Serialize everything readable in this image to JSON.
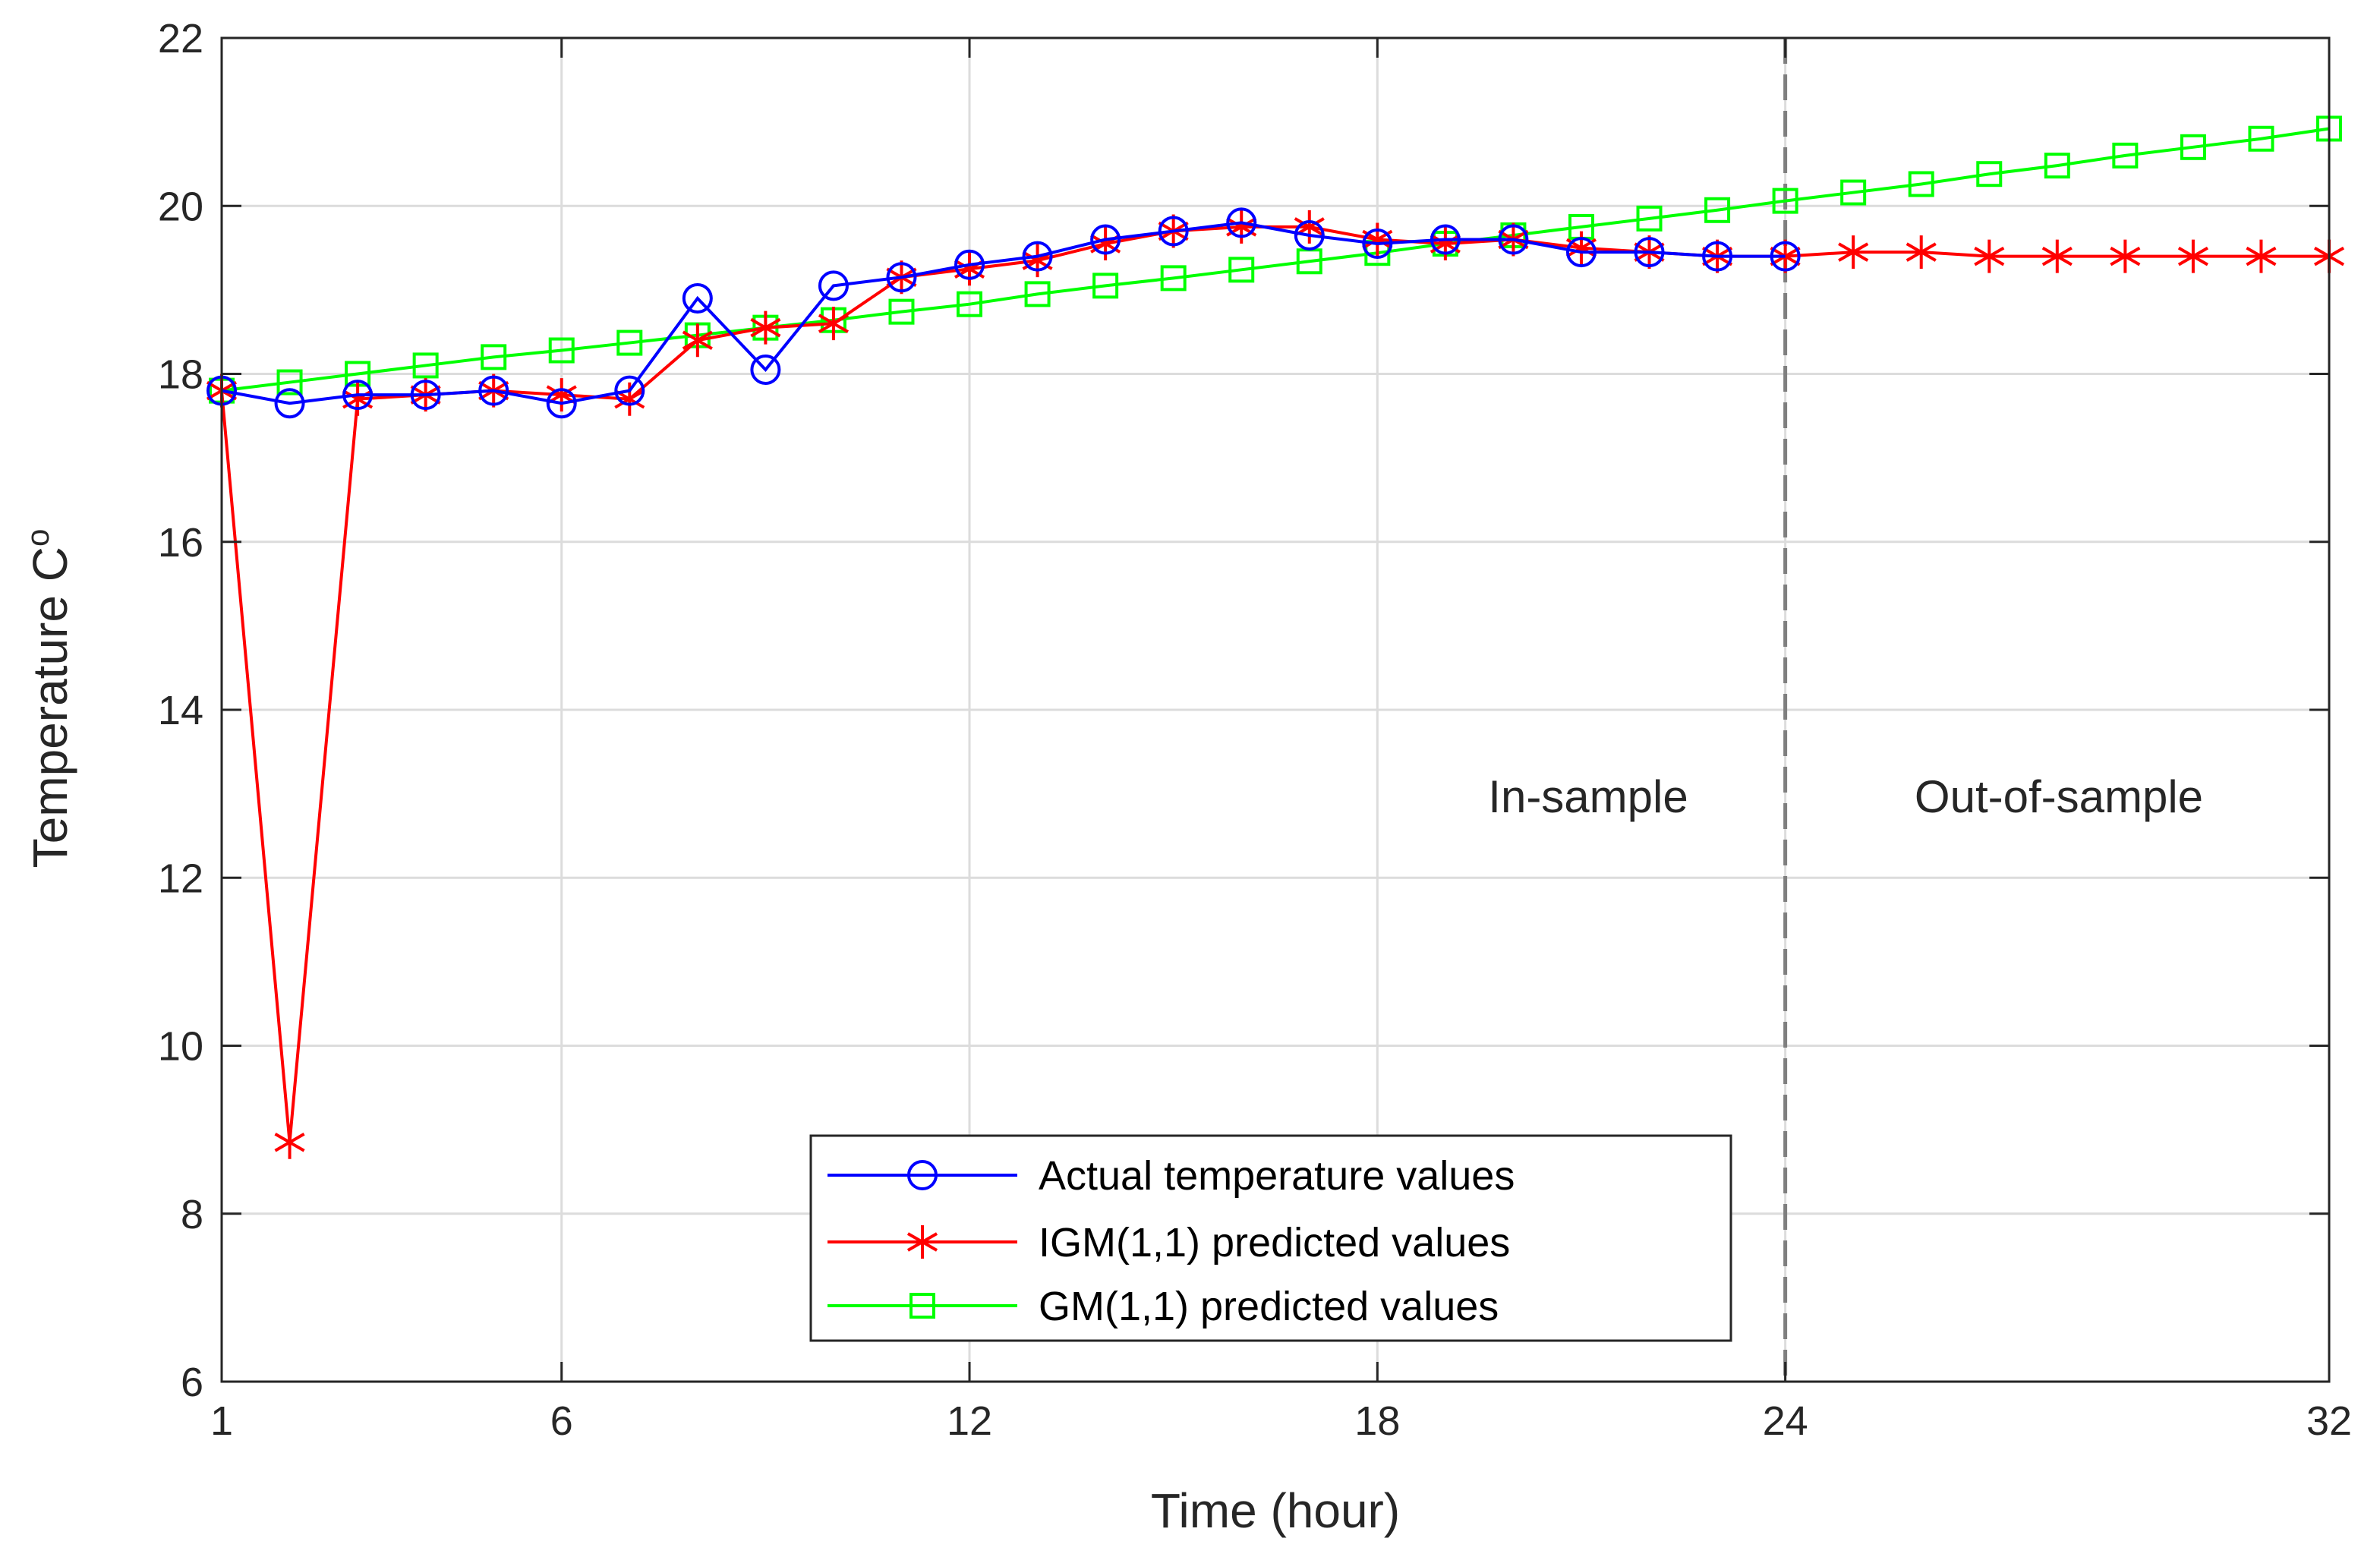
{
  "chart_data": {
    "type": "line",
    "xlabel": "Time (hour)",
    "ylabel": "Temperature C",
    "ylabel_superscript": "o",
    "xlim": [
      1,
      32
    ],
    "ylim": [
      6,
      22
    ],
    "xticks": [
      1,
      6,
      12,
      18,
      24,
      32
    ],
    "yticks": [
      6,
      8,
      10,
      12,
      14,
      16,
      18,
      20,
      22
    ],
    "grid": true,
    "split_x": 24,
    "annotations": {
      "in_sample": "In-sample",
      "out_of_sample": "Out-of-sample"
    },
    "legend_position": "bottom-center",
    "series": [
      {
        "name": "Actual temperature values",
        "color": "#0000ff",
        "marker": "circle",
        "x": [
          1,
          2,
          3,
          4,
          5,
          6,
          7,
          8,
          9,
          10,
          11,
          12,
          13,
          14,
          15,
          16,
          17,
          18,
          19,
          20,
          21,
          22,
          23,
          24
        ],
        "values": [
          17.8,
          17.65,
          17.75,
          17.75,
          17.8,
          17.65,
          17.8,
          18.9,
          18.05,
          19.05,
          19.15,
          19.3,
          19.4,
          19.6,
          19.7,
          19.8,
          19.65,
          19.55,
          19.6,
          19.6,
          19.45,
          19.45,
          19.4,
          19.4
        ]
      },
      {
        "name": "IGM(1,1) predicted values",
        "color": "#ff0000",
        "marker": "asterisk",
        "x": [
          1,
          2,
          3,
          4,
          5,
          6,
          7,
          8,
          9,
          10,
          11,
          12,
          13,
          14,
          15,
          16,
          17,
          18,
          19,
          20,
          21,
          22,
          23,
          24,
          25,
          26,
          27,
          28,
          29,
          30,
          31,
          32
        ],
        "values": [
          17.8,
          8.85,
          17.7,
          17.75,
          17.8,
          17.75,
          17.7,
          18.4,
          18.55,
          18.6,
          19.15,
          19.25,
          19.35,
          19.55,
          19.7,
          19.75,
          19.75,
          19.6,
          19.55,
          19.6,
          19.5,
          19.45,
          19.4,
          19.4,
          19.45,
          19.45,
          19.4,
          19.4,
          19.4,
          19.4,
          19.4,
          19.4
        ]
      },
      {
        "name": "GM(1,1) predicted values",
        "color": "#00ff00",
        "marker": "square",
        "x": [
          1,
          2,
          3,
          4,
          5,
          6,
          7,
          8,
          9,
          10,
          11,
          12,
          13,
          14,
          15,
          16,
          17,
          18,
          19,
          20,
          21,
          22,
          23,
          24,
          25,
          26,
          27,
          28,
          29,
          30,
          31,
          32
        ],
        "values": [
          17.8,
          17.9,
          18.0,
          18.1,
          18.2,
          18.28,
          18.37,
          18.46,
          18.55,
          18.64,
          18.74,
          18.83,
          18.95,
          19.05,
          19.14,
          19.24,
          19.34,
          19.44,
          19.55,
          19.65,
          19.75,
          19.85,
          19.95,
          20.06,
          20.16,
          20.26,
          20.38,
          20.48,
          20.6,
          20.7,
          20.8,
          20.92
        ]
      }
    ]
  }
}
